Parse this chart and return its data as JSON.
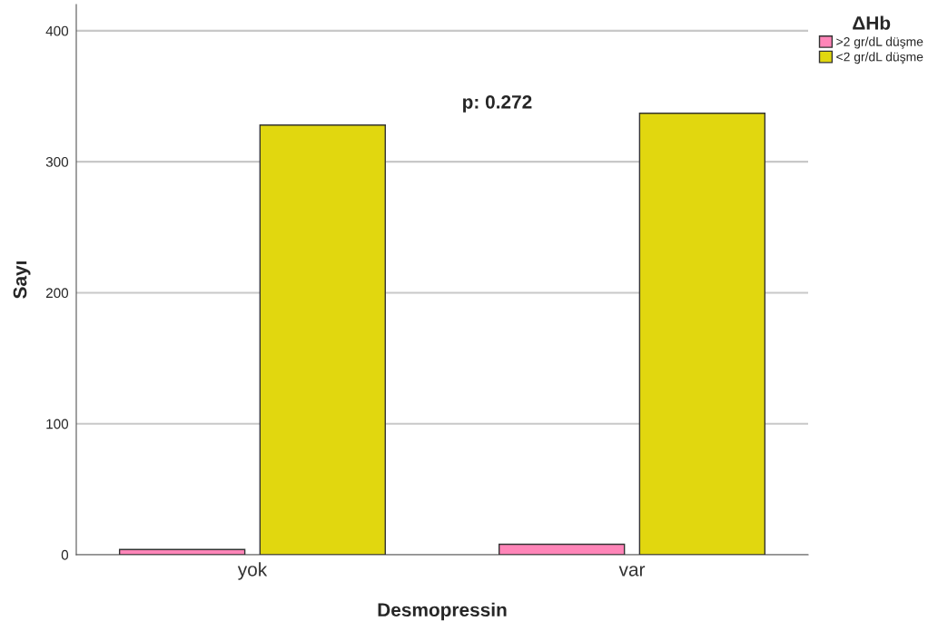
{
  "chart_data": {
    "type": "bar",
    "xlabel": "Desmopressin",
    "ylabel": "Sayı",
    "legend_title": "ΔHb",
    "categories": [
      "yok",
      "var"
    ],
    "series": [
      {
        "name": ">2 gr/dL düşme",
        "color": "#ff85b8",
        "values": [
          4,
          8
        ]
      },
      {
        "name": "<2 gr/dL düşme",
        "color": "#e1d70f",
        "values": [
          328,
          337
        ]
      }
    ],
    "ylim": [
      0,
      420
    ],
    "yticks": [
      0,
      100,
      200,
      300,
      400
    ],
    "grid": "y",
    "legend": "top right",
    "annotations": [
      "p: 0.272"
    ]
  }
}
